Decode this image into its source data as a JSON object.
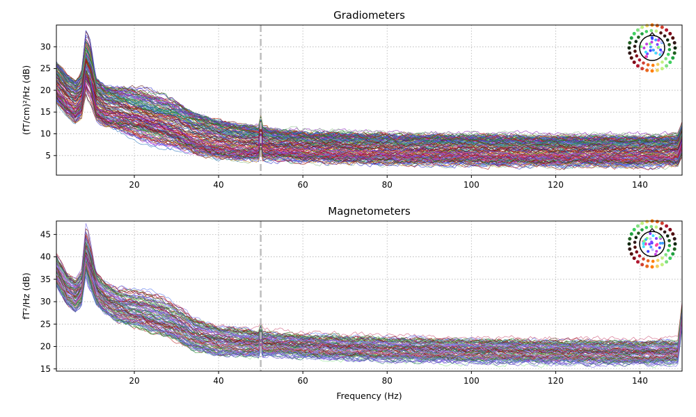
{
  "chart_data": [
    {
      "type": "line",
      "title": "Gradiometers",
      "xlabel": "",
      "ylabel": "(fT/cm)²/Hz (dB)",
      "xlim": [
        1.5,
        150
      ],
      "ylim": [
        0.5,
        35
      ],
      "xticks": [
        20,
        40,
        60,
        80,
        100,
        120,
        140
      ],
      "yticks": [
        5,
        10,
        15,
        20,
        25,
        30
      ],
      "grid": true,
      "marker_line_x": 50,
      "sensor_layout_inset": "top-right",
      "trace_count": 204,
      "trace_colors": [
        "#cc1f10",
        "#a31818",
        "#7b1010",
        "#2e8b2e",
        "#1a7a1a",
        "#3b3bd1",
        "#6a3fcf",
        "#8e2bbd",
        "#c040e0",
        "#3a80c0",
        "#2a9090",
        "#d04060",
        "#90c090",
        "#d8a040",
        "#601818",
        "#5060e0"
      ],
      "reference_spectrum": {
        "x": [
          1.5,
          4,
          6,
          7.5,
          8.5,
          9.5,
          11,
          13,
          16,
          20,
          25,
          30,
          35,
          40,
          45,
          49.5,
          50,
          50.5,
          55,
          60,
          70,
          80,
          90,
          100,
          110,
          120,
          130,
          140,
          149,
          150
        ],
        "y": [
          22,
          19,
          17.5,
          19,
          26,
          24,
          18,
          16.5,
          15.5,
          14,
          12.5,
          11.5,
          10,
          8.8,
          8.2,
          8.0,
          10.5,
          8.0,
          7.6,
          7.3,
          7.0,
          6.8,
          6.6,
          6.5,
          6.4,
          6.3,
          6.3,
          6.2,
          6.4,
          9.0
        ]
      },
      "spread_db": [
        -5,
        4.5
      ],
      "peak_gain": [
        0.1,
        1.2
      ]
    },
    {
      "type": "line",
      "title": "Magnetometers",
      "xlabel": "Frequency (Hz)",
      "ylabel": "fT²/Hz (dB)",
      "xlim": [
        1.5,
        150
      ],
      "ylim": [
        14.5,
        48
      ],
      "xticks": [
        20,
        40,
        60,
        80,
        100,
        120,
        140
      ],
      "yticks": [
        15,
        20,
        25,
        30,
        35,
        40,
        45
      ],
      "grid": true,
      "marker_line_x": 50,
      "sensor_layout_inset": "top-right",
      "trace_count": 102,
      "trace_colors": [
        "#7b6fe8",
        "#8a5ae0",
        "#5a3fc0",
        "#2f7a2f",
        "#3a9a3a",
        "#8fe08f",
        "#a01818",
        "#7a1010",
        "#c03030",
        "#6080f0",
        "#a080f0",
        "#2a6a6a",
        "#408040",
        "#d06080"
      ],
      "reference_spectrum": {
        "x": [
          1.5,
          4,
          6,
          7.5,
          8.5,
          9.5,
          11,
          13,
          16,
          20,
          25,
          30,
          35,
          40,
          45,
          49.5,
          50,
          50.5,
          55,
          60,
          70,
          80,
          90,
          100,
          110,
          120,
          130,
          140,
          149,
          150
        ],
        "y": [
          37,
          33,
          31.5,
          33,
          40,
          37,
          33,
          31,
          29,
          27.5,
          26,
          24.5,
          22.5,
          21.5,
          21.0,
          20.8,
          22.5,
          20.8,
          20.5,
          20.2,
          19.8,
          19.5,
          19.3,
          19.1,
          19.0,
          18.9,
          18.8,
          18.7,
          18.8,
          27.0
        ]
      },
      "spread_db": [
        -3.5,
        3.5
      ],
      "peak_gain": [
        0.2,
        1.3
      ]
    }
  ]
}
